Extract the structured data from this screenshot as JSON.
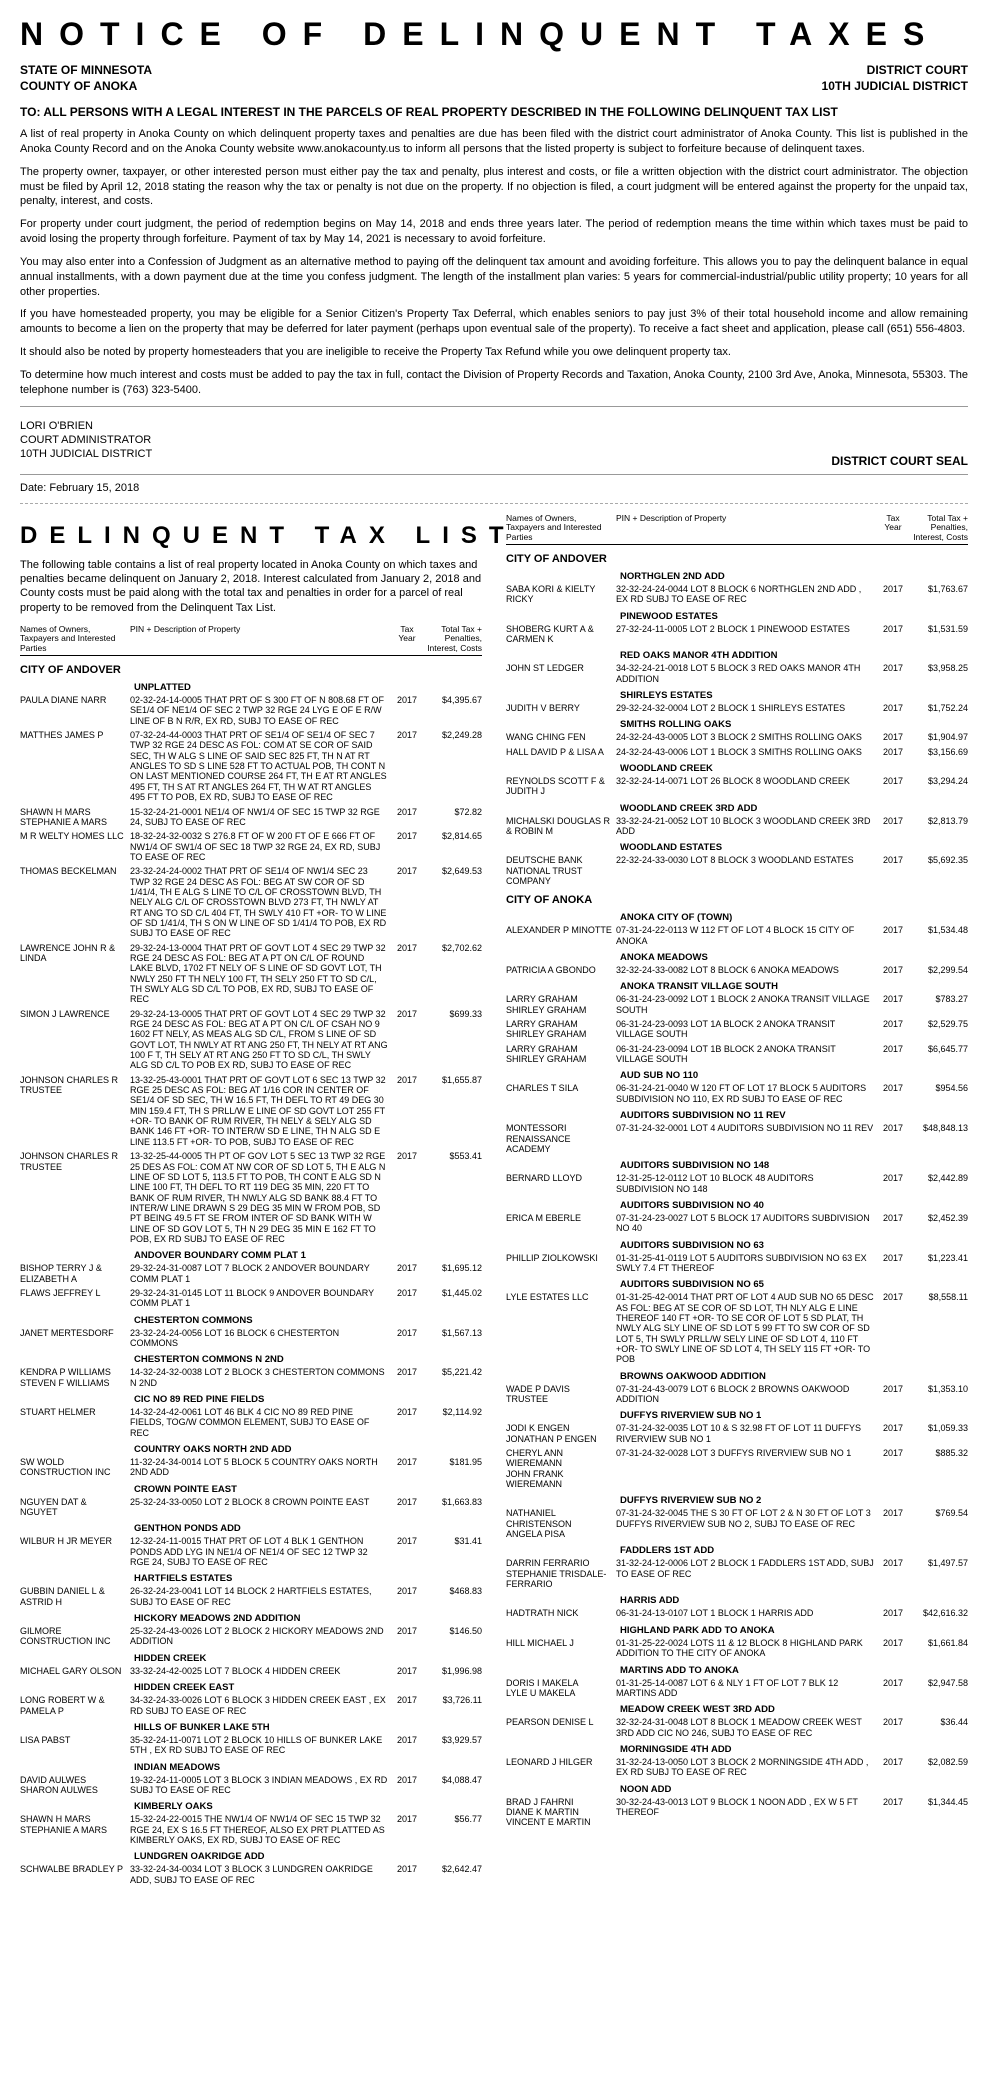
{
  "doc_title": "NOTICE OF DELINQUENT TAXES",
  "header": {
    "state_line": "STATE OF MINNESOTA",
    "district_court": "DISTRICT COURT",
    "county_line": "COUNTY OF ANOKA",
    "judicial_district": "10TH JUDICIAL DISTRICT"
  },
  "to_line": "TO: ALL PERSONS WITH A LEGAL INTEREST IN THE PARCELS OF REAL PROPERTY DESCRIBED IN THE FOLLOWING DELINQUENT TAX LIST",
  "paras": [
    "A list of real property in Anoka County on which delinquent property taxes and penalties are due has been filed with the district court administrator of Anoka County.  This list is published in the Anoka County Record and on the Anoka County website www.anokacounty.us to inform all persons that the listed property is subject to forfeiture because of delinquent taxes.",
    "The property owner, taxpayer, or other interested person must either pay the tax and penalty, plus interest and costs, or file a written objection with the district court administrator.  The objection must be filed by April 12, 2018 stating the reason why the tax or penalty is not due on the property.  If no objection is filed, a court judgment will be entered against the property for the unpaid tax, penalty, interest, and costs.",
    "For property under court judgment, the period of redemption begins on May 14, 2018 and ends three years later.  The period of redemption means the time within which taxes must be paid to avoid losing the property through forfeiture.   Payment of tax by May 14, 2021 is necessary to avoid forfeiture.",
    "You may also enter into a Confession of Judgment as an alternative method to paying off the delinquent tax amount and avoiding forfeiture. This allows you to pay the delinquent balance in equal annual installments, with a down payment due at the time you confess judgment. The length of the installment plan varies:  5 years for commercial-industrial/public utility property; 10 years for all other properties.",
    "If you have homesteaded property, you may be eligible for a Senior Citizen's Property Tax Deferral, which enables seniors to pay just 3% of their total household income and allow remaining amounts to become a lien on the property that may be deferred for later payment (perhaps upon eventual sale of the property).  To receive a fact sheet and application, please call (651) 556-4803.",
    "It should also be noted by property homesteaders that you are ineligible to receive the Property Tax Refund while you owe delinquent property tax.",
    "To determine how much interest and costs must be added to pay the tax in full, contact the Division of Property Records and Taxation, Anoka County, 2100 3rd Ave, Anoka, Minnesota, 55303.  The telephone number is (763) 323-5400."
  ],
  "signature": {
    "name": "LORI O'BRIEN",
    "title1": "COURT ADMINISTRATOR",
    "title2": "10TH JUDICIAL DISTRICT",
    "seal": "DISTRICT COURT SEAL"
  },
  "date_line": "Date:  February 15, 2018",
  "list_title": "DELINQUENT TAX LIST",
  "list_intro": "The following table contains a list of real property located in Anoka County on which taxes and penalties became delinquent on January 2, 2018.  Interest calculated from January 2, 2018 and County costs must be paid along with the total tax and penalties in order for a parcel of real property to be removed from the Delinquent Tax List.",
  "col_head": {
    "c1": "Names of Owners, Taxpayers and Interested Parties",
    "c2": "PIN + Description of Property",
    "c3": "Tax Year",
    "c4": "Total Tax + Penalties, Interest, Costs"
  },
  "left": [
    {
      "city": "CITY OF ANDOVER"
    },
    {
      "sub": "UNPLATTED"
    },
    {
      "owner": "PAULA DIANE NARR",
      "desc": "02-32-24-14-0005   THAT PRT OF S 300 FT OF N 808.68 FT OF SE1/4 OF NE1/4 OF SEC 2 TWP 32 RGE 24 LYG E OF E R/W LINE OF B N R/R, EX RD, SUBJ TO EASE OF REC",
      "year": "2017",
      "amt": "$4,395.67"
    },
    {
      "owner": "MATTHES JAMES P",
      "desc": "07-32-24-44-0003   THAT PRT OF SE1/4 OF SE1/4 OF SEC 7 TWP 32 RGE 24 DESC AS FOL: COM AT SE COR OF SAID SEC, TH W ALG S LINE OF SAID SEC 825 FT, TH N AT RT ANGLES TO SD S LINE 528 FT TO ACTUAL POB, TH CONT N ON LAST MENTIONED COURSE 264 FT, TH E AT RT ANGLES 495 FT, TH S AT RT ANGLES 264 FT, TH W AT RT ANGLES 495 FT TO POB, EX RD, SUBJ TO EASE OF REC",
      "year": "2017",
      "amt": "$2,249.28"
    },
    {
      "owner": "SHAWN H MARS\nSTEPHANIE A MARS",
      "desc": "15-32-24-21-0001   NE1/4 OF NW1/4 OF SEC 15 TWP 32 RGE 24, SUBJ TO EASE OF REC",
      "year": "2017",
      "amt": "$72.82"
    },
    {
      "owner": "M R WELTY HOMES LLC",
      "desc": "18-32-24-32-0032   S 276.8 FT OF W 200 FT OF E 666 FT OF NW1/4 OF SW1/4 OF SEC 18 TWP 32 RGE 24, EX RD, SUBJ TO EASE OF REC",
      "year": "2017",
      "amt": "$2,814.65"
    },
    {
      "owner": "THOMAS  BECKELMAN",
      "desc": "23-32-24-24-0002   THAT PRT OF SE1/4 OF NW1/4 SEC 23 TWP 32 RGE 24 DESC AS FOL: BEG AT SW COR OF SD 1/41/4, TH E ALG S LINE TO C/L OF CROSSTOWN BLVD, TH NELY ALG C/L OF CROSSTOWN BLVD 273 FT, TH NWLY AT RT ANG TO SD C/L 404 FT, TH SWLY 410 FT +OR- TO W LINE OF SD 1/41/4, TH S ON W LINE OF SD 1/41/4 TO POB, EX RD SUBJ TO EASE OF REC",
      "year": "2017",
      "amt": "$2,649.53"
    },
    {
      "owner": "LAWRENCE JOHN R & LINDA",
      "desc": "29-32-24-13-0004   THAT PRT OF GOVT LOT 4 SEC 29 TWP 32 RGE 24 DESC AS FOL: BEG AT A PT ON C/L OF ROUND LAKE BLVD, 1702 FT NELY OF S LINE OF SD GOVT LOT, TH NWLY 250 FT TH NELY 100 FT, TH SELY 250 FT TO SD C/L, TH SWLY ALG SD C/L TO POB, EX RD, SUBJ TO EASE OF REC",
      "year": "2017",
      "amt": "$2,702.62"
    },
    {
      "owner": "SIMON J LAWRENCE",
      "desc": "29-32-24-13-0005   THAT PRT OF GOVT LOT 4 SEC 29 TWP 32 RGE 24 DESC AS FOL: BEG AT A PT ON C/L OF CSAH NO 9 1602 FT NELY, AS MEAS ALG SD C/L, FROM S LINE OF SD GOVT LOT, TH NWLY AT RT ANG 250 FT, TH NELY AT RT ANG 100 F T, TH SELY AT RT ANG 250 FT TO SD C/L, TH SWLY ALG SD C/L TO POB EX RD, SUBJ TO EASE OF REC",
      "year": "2017",
      "amt": "$699.33"
    },
    {
      "owner": "JOHNSON CHARLES R TRUSTEE",
      "desc": "13-32-25-43-0001   THAT PRT OF GOVT LOT 6 SEC 13 TWP 32 RGE 25 DESC AS FOL: BEG AT 1/16 COR IN CENTER OF SE1/4 OF SD SEC, TH W 16.5 FT, TH DEFL TO RT 49 DEG 30 MIN 159.4 FT, TH S PRLL/W E LINE OF SD GOVT LOT 255 FT +OR- TO BANK OF RUM RIVER, TH NELY & SELY ALG SD BANK 146 FT +OR- TO INTER/W SD E LINE, TH N ALG SD E LINE 113.5 FT +OR- TO POB, SUBJ TO EASE OF REC",
      "year": "2017",
      "amt": "$1,655.87"
    },
    {
      "owner": "JOHNSON CHARLES R TRUSTEE",
      "desc": "13-32-25-44-0005   TH PT OF GOV LOT 5 SEC 13 TWP 32 RGE 25 DES AS FOL: COM AT NW COR OF SD LOT 5, TH E ALG N LINE OF SD LOT 5, 113.5 FT TO POB, TH CONT E ALG SD N LINE 100 FT, TH DEFL TO RT 119 DEG 35 MIN, 220 FT TO BANK OF RUM RIVER, TH NWLY ALG SD BANK 88.4 FT TO INTER/W LINE DRAWN S 29 DEG 35 MIN W FROM POB, SD PT BEING 49.5 FT SE FROM INTER OF SD BANK WITH W LINE OF SD GOV LOT 5, TH N 29 DEG 35 MIN E 162 FT TO POB, EX RD SUBJ TO EASE OF REC",
      "year": "2017",
      "amt": "$553.41"
    },
    {
      "sub": "ANDOVER BOUNDARY COMM PLAT 1"
    },
    {
      "owner": "BISHOP TERRY J & ELIZABETH A",
      "desc": "29-32-24-31-0087   LOT  7  BLOCK   2   ANDOVER BOUNDARY COMM PLAT 1",
      "year": "2017",
      "amt": "$1,695.12"
    },
    {
      "owner": "FLAWS JEFFREY L",
      "desc": "29-32-24-31-0145   LOT  11  BLOCK   9   ANDOVER BOUNDARY COMM PLAT 1",
      "year": "2017",
      "amt": "$1,445.02"
    },
    {
      "sub": "CHESTERTON COMMONS"
    },
    {
      "owner": "JANET  MERTESDORF",
      "desc": "23-32-24-24-0056   LOT  16  BLOCK   6   CHESTERTON COMMONS",
      "year": "2017",
      "amt": "$1,567.13"
    },
    {
      "sub": "CHESTERTON COMMONS N 2ND"
    },
    {
      "owner": "KENDRA P WILLIAMS\nSTEVEN F WILLIAMS",
      "desc": "14-32-24-32-0038   LOT 2 BLOCK 3 CHESTERTON COMMONS N 2ND",
      "year": "2017",
      "amt": "$5,221.42"
    },
    {
      "sub": "CIC NO 89 RED PINE FIELDS"
    },
    {
      "owner": "STUART  HELMER",
      "desc": "14-32-24-42-0061   LOT 46 BLK 4 CIC NO 89 RED PINE FIELDS, TOG/W COMMON ELEMENT, SUBJ TO EASE OF REC",
      "year": "2017",
      "amt": "$2,114.92"
    },
    {
      "sub": "COUNTRY OAKS NORTH 2ND ADD"
    },
    {
      "owner": "SW WOLD CONSTRUCTION INC",
      "desc": "11-32-24-34-0014   LOT  5  BLOCK   5   COUNTRY OAKS NORTH 2ND ADD",
      "year": "2017",
      "amt": "$181.95"
    },
    {
      "sub": "CROWN POINTE EAST"
    },
    {
      "owner": "NGUYEN DAT & NGUYET",
      "desc": "25-32-24-33-0050   LOT 2 BLOCK 8 CROWN POINTE EAST",
      "year": "2017",
      "amt": "$1,663.83"
    },
    {
      "sub": "GENTHON PONDS ADD"
    },
    {
      "owner": "WILBUR H JR MEYER",
      "desc": "12-32-24-11-0015   THAT PRT OF LOT 4 BLK 1 GENTHON PONDS ADD LYG IN NE1/4 OF NE1/4 OF SEC 12 TWP 32 RGE 24, SUBJ TO EASE OF REC",
      "year": "2017",
      "amt": "$31.41"
    },
    {
      "sub": "HARTFIELS ESTATES"
    },
    {
      "owner": "GUBBIN DANIEL L & ASTRID H",
      "desc": "26-32-24-23-0041   LOT 14 BLOCK 2 HARTFIELS ESTATES, SUBJ TO EASE OF REC",
      "year": "2017",
      "amt": "$468.83"
    },
    {
      "sub": "HICKORY MEADOWS 2ND ADDITION"
    },
    {
      "owner": "GILMORE CONSTRUCTION INC",
      "desc": "25-32-24-43-0026   LOT  2  BLOCK   2   HICKORY MEADOWS 2ND ADDITION",
      "year": "2017",
      "amt": "$146.50"
    },
    {
      "sub": "HIDDEN CREEK"
    },
    {
      "owner": "MICHAEL GARY OLSON",
      "desc": "33-32-24-42-0025   LOT  7  BLOCK   4   HIDDEN CREEK",
      "year": "2017",
      "amt": "$1,996.98"
    },
    {
      "sub": "HIDDEN CREEK EAST"
    },
    {
      "owner": "LONG ROBERT W & PAMELA P",
      "desc": "34-32-24-33-0026   LOT  6  BLOCK   3   HIDDEN CREEK EAST , EX RD SUBJ TO EASE OF REC",
      "year": "2017",
      "amt": "$3,726.11"
    },
    {
      "sub": "HILLS OF BUNKER LAKE 5TH"
    },
    {
      "owner": "LISA  PABST",
      "desc": "35-32-24-11-0071   LOT  2  BLOCK   10   HILLS OF BUNKER LAKE 5TH , EX RD SUBJ TO EASE OF REC",
      "year": "2017",
      "amt": "$3,929.57"
    },
    {
      "sub": "INDIAN MEADOWS"
    },
    {
      "owner": "DAVID  AULWES\nSHARON  AULWES",
      "desc": "19-32-24-11-0005   LOT  3  BLOCK   3   INDIAN MEADOWS , EX RD SUBJ TO EASE OF REC",
      "year": "2017",
      "amt": "$4,088.47"
    },
    {
      "sub": "KIMBERLY OAKS"
    },
    {
      "owner": "SHAWN H MARS\nSTEPHANIE A MARS",
      "desc": "15-32-24-22-0015   THE NW1/4 OF NW1/4 OF SEC 15 TWP 32 RGE 24, EX S 16.5 FT THEREOF, ALSO EX PRT PLATTED AS KIMBERLY OAKS, EX RD, SUBJ TO EASE OF REC",
      "year": "2017",
      "amt": "$56.77"
    },
    {
      "sub": "LUNDGREN OAKRIDGE ADD"
    },
    {
      "owner": "SCHWALBE BRADLEY P",
      "desc": "33-32-24-34-0034   LOT  3  BLOCK   3   LUNDGREN OAKRIDGE ADD, SUBJ TO EASE OF REC",
      "year": "2017",
      "amt": "$2,642.47"
    }
  ],
  "right": [
    {
      "city": "CITY OF ANDOVER"
    },
    {
      "sub": "NORTHGLEN 2ND ADD"
    },
    {
      "owner": "SABA KORI & KIELTY RICKY",
      "desc": "32-32-24-24-0044   LOT  8  BLOCK   6   NORTHGLEN 2ND ADD , EX RD SUBJ TO EASE OF REC",
      "year": "2017",
      "amt": "$1,763.67"
    },
    {
      "sub": "PINEWOOD ESTATES"
    },
    {
      "owner": "SHOBERG KURT A & CARMEN K",
      "desc": "27-32-24-11-0005   LOT  2  BLOCK   1   PINEWOOD ESTATES",
      "year": "2017",
      "amt": "$1,531.59"
    },
    {
      "sub": "RED OAKS MANOR 4TH ADDITION"
    },
    {
      "owner": "JOHN  ST LEDGER",
      "desc": "34-32-24-21-0018   LOT  5  BLOCK   3   RED OAKS MANOR 4TH ADDITION",
      "year": "2017",
      "amt": "$3,958.25"
    },
    {
      "sub": "SHIRLEYS ESTATES"
    },
    {
      "owner": "JUDITH V BERRY",
      "desc": "29-32-24-32-0004   LOT  2  BLOCK   1   SHIRLEYS ESTATES",
      "year": "2017",
      "amt": "$1,752.24"
    },
    {
      "sub": "SMITHS ROLLING OAKS"
    },
    {
      "owner": "WANG CHING FEN",
      "desc": "24-32-24-43-0005   LOT  3  BLOCK   2   SMITHS ROLLING OAKS",
      "year": "2017",
      "amt": "$1,904.97"
    },
    {
      "owner": "HALL DAVID P & LISA A",
      "desc": "24-32-24-43-0006   LOT  1  BLOCK   3   SMITHS ROLLING OAKS",
      "year": "2017",
      "amt": "$3,156.69"
    },
    {
      "sub": "WOODLAND CREEK"
    },
    {
      "owner": "REYNOLDS SCOTT F & JUDITH J",
      "desc": "32-32-24-14-0071   LOT  26  BLOCK   8   WOODLAND CREEK",
      "year": "2017",
      "amt": "$3,294.24"
    },
    {
      "sub": "WOODLAND CREEK 3RD ADD"
    },
    {
      "owner": "MICHALSKI DOUGLAS R & ROBIN M",
      "desc": "33-32-24-21-0052   LOT  10  BLOCK   3   WOODLAND CREEK 3RD ADD",
      "year": "2017",
      "amt": "$2,813.79"
    },
    {
      "sub": "WOODLAND ESTATES"
    },
    {
      "owner": "DEUTSCHE BANK NATIONAL TRUST COMPANY",
      "desc": "22-32-24-33-0030   LOT  8  BLOCK   3   WOODLAND ESTATES",
      "year": "2017",
      "amt": "$5,692.35"
    },
    {
      "city": "CITY OF ANOKA"
    },
    {
      "sub": "ANOKA CITY OF (TOWN)"
    },
    {
      "owner": "ALEXANDER P MINOTTE",
      "desc": "07-31-24-22-0113   W 112 FT OF LOT 4  BLOCK   15   CITY OF ANOKA",
      "year": "2017",
      "amt": "$1,534.48"
    },
    {
      "sub": "ANOKA MEADOWS"
    },
    {
      "owner": "PATRICIA A GBONDO",
      "desc": "32-32-24-33-0082   LOT  8  BLOCK   6   ANOKA MEADOWS",
      "year": "2017",
      "amt": "$2,299.54"
    },
    {
      "sub": "ANOKA TRANSIT VILLAGE SOUTH"
    },
    {
      "owner": "LARRY  GRAHAM\nSHIRLEY  GRAHAM",
      "desc": "06-31-24-23-0092   LOT  1  BLOCK   2   ANOKA TRANSIT VILLAGE SOUTH",
      "year": "2017",
      "amt": "$783.27"
    },
    {
      "owner": "LARRY  GRAHAM\nSHIRLEY  GRAHAM",
      "desc": "06-31-24-23-0093   LOT  1A  BLOCK   2   ANOKA TRANSIT VILLAGE SOUTH",
      "year": "2017",
      "amt": "$2,529.75"
    },
    {
      "owner": "LARRY  GRAHAM\nSHIRLEY  GRAHAM",
      "desc": "06-31-24-23-0094   LOT  1B  BLOCK   2   ANOKA TRANSIT VILLAGE SOUTH",
      "year": "2017",
      "amt": "$6,645.77"
    },
    {
      "sub": "AUD SUB NO 110"
    },
    {
      "owner": "CHARLES T SILA",
      "desc": "06-31-24-21-0040   W 120 FT OF LOT 17 BLOCK 5 AUDITORS SUBDIVISION NO 110, EX RD SUBJ TO EASE OF REC",
      "year": "2017",
      "amt": "$954.56"
    },
    {
      "sub": "AUDITORS SUBDIVISION NO 11 REV"
    },
    {
      "owner": "MONTESSORI RENAISSANCE ACADEMY",
      "desc": "07-31-24-32-0001   LOT  4   AUDITORS SUBDIVISION NO 11 REV",
      "year": "2017",
      "amt": "$48,848.13"
    },
    {
      "sub": "AUDITORS SUBDIVISION NO 148"
    },
    {
      "owner": "BERNARD  LLOYD",
      "desc": "12-31-25-12-0112   LOT  10  BLOCK   48   AUDITORS SUBDIVISION NO 148",
      "year": "2017",
      "amt": "$2,442.89"
    },
    {
      "sub": "AUDITORS SUBDIVISION NO 40"
    },
    {
      "owner": "ERICA M EBERLE",
      "desc": "07-31-24-23-0027   LOT  5  BLOCK   17   AUDITORS SUBDIVISION NO 40",
      "year": "2017",
      "amt": "$2,452.39"
    },
    {
      "sub": "AUDITORS SUBDIVISION NO 63"
    },
    {
      "owner": "PHILLIP  ZIOLKOWSKI",
      "desc": "01-31-25-41-0119   LOT  5   AUDITORS SUBDIVISION NO 63 EX SWLY 7.4 FT THEREOF",
      "year": "2017",
      "amt": "$1,223.41"
    },
    {
      "sub": "AUDITORS SUBDIVISION NO 65"
    },
    {
      "owner": "LYLE ESTATES LLC",
      "desc": "01-31-25-42-0014   THAT PRT OF LOT  4  AUD SUB NO 65 DESC AS FOL: BEG AT SE COR OF SD LOT, TH NLY ALG E LINE THEREOF 140 FT +OR- TO SE COR OF LOT 5 SD PLAT, TH NWLY ALG SLY LINE OF SD LOT 5 99 FT TO SW COR OF SD LOT 5, TH SWLY PRLL/W SELY LINE OF SD LOT 4, 110 FT +OR- TO SWLY LINE OF SD LOT 4, TH SELY 115 FT +OR- TO POB",
      "year": "2017",
      "amt": "$8,558.11"
    },
    {
      "sub": "BROWNS OAKWOOD ADDITION"
    },
    {
      "owner": "WADE P DAVIS TRUSTEE",
      "desc": "07-31-24-43-0079   LOT  6  BLOCK   2   BROWNS OAKWOOD ADDITION",
      "year": "2017",
      "amt": "$1,353.10"
    },
    {
      "sub": "DUFFYS RIVERVIEW SUB NO 1"
    },
    {
      "owner": "JODI K ENGEN\nJONATHAN P ENGEN",
      "desc": "07-31-24-32-0035   LOT  10 & S 32.98 FT OF LOT  11   DUFFYS RIVERVIEW SUB NO 1",
      "year": "2017",
      "amt": "$1,059.33"
    },
    {
      "owner": "CHERYL ANN WIEREMANN\nJOHN FRANK WIEREMANN",
      "desc": "07-31-24-32-0028   LOT  3   DUFFYS RIVERVIEW SUB NO 1",
      "year": "2017",
      "amt": "$885.32"
    },
    {
      "sub": "DUFFYS RIVERVIEW SUB NO 2"
    },
    {
      "owner": "NATHANIEL CHRISTENSON\nANGELA  PISA",
      "desc": "07-31-24-32-0045   THE S 30 FT OF LOT 2 & N 30 FT OF LOT 3 DUFFYS RIVERVIEW SUB NO 2, SUBJ TO EASE OF REC",
      "year": "2017",
      "amt": "$769.54"
    },
    {
      "sub": "FADDLERS 1ST ADD"
    },
    {
      "owner": "DARRIN  FERRARIO\nSTEPHANIE  TRISDALE-FERRARIO",
      "desc": "31-32-24-12-0006   LOT  2  BLOCK   1   FADDLERS 1ST ADD, SUBJ TO EASE OF REC",
      "year": "2017",
      "amt": "$1,497.57"
    },
    {
      "sub": "HARRIS ADD"
    },
    {
      "owner": "HADTRATH NICK",
      "desc": "06-31-24-13-0107   LOT 1 BLOCK 1 HARRIS ADD",
      "year": "2017",
      "amt": "$42,616.32"
    },
    {
      "sub": "HIGHLAND PARK ADD TO ANOKA"
    },
    {
      "owner": "HILL MICHAEL J",
      "desc": "01-31-25-22-0024   LOTS 11 & 12 BLOCK 8 HIGHLAND PARK ADDITION TO THE CITY OF ANOKA",
      "year": "2017",
      "amt": "$1,661.84"
    },
    {
      "sub": "MARTINS ADD TO ANOKA"
    },
    {
      "owner": "DORIS I MAKELA\nLYLE U MAKELA",
      "desc": "01-31-25-14-0087   LOT 6 & NLY 1 FT OF LOT 7 BLK 12 MARTINS ADD",
      "year": "2017",
      "amt": "$2,947.58"
    },
    {
      "sub": "MEADOW CREEK WEST 3RD ADD"
    },
    {
      "owner": "PEARSON DENISE L",
      "desc": "32-32-24-31-0048   LOT  8  BLOCK   1   MEADOW CREEK WEST 3RD ADD CIC NO 246, SUBJ TO EASE OF REC",
      "year": "2017",
      "amt": "$36.44"
    },
    {
      "sub": "MORNINGSIDE 4TH ADD"
    },
    {
      "owner": "LEONARD J HILGER",
      "desc": "31-32-24-13-0050   LOT  3  BLOCK   2   MORNINGSIDE 4TH ADD , EX RD SUBJ TO EASE OF REC",
      "year": "2017",
      "amt": "$2,082.59"
    },
    {
      "sub": "NOON ADD"
    },
    {
      "owner": "BRAD J FAHRNI\nDIANE K MARTIN\nVINCENT E MARTIN",
      "desc": "30-32-24-43-0013   LOT  9  BLOCK   1   NOON ADD , EX W 5 FT THEREOF",
      "year": "2017",
      "amt": "$1,344.45"
    }
  ]
}
